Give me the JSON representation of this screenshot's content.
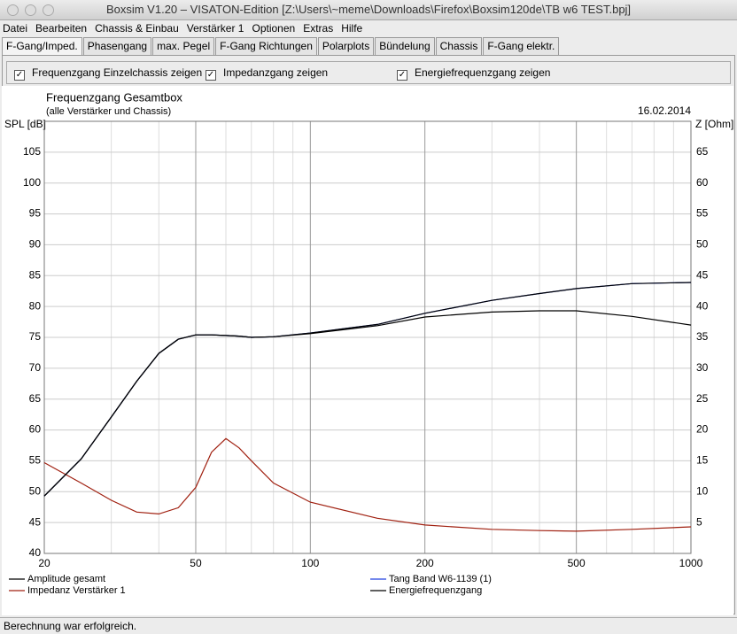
{
  "window": {
    "title": "Boxsim V1.20 – VISATON-Edition [Z:\\Users\\~meme\\Downloads\\Firefox\\Boxsim120de\\TB w6 TEST.bpj]"
  },
  "menu": [
    "Datei",
    "Bearbeiten",
    "Chassis & Einbau",
    "Verstärker 1",
    "Optionen",
    "Extras",
    "Hilfe"
  ],
  "tabs": [
    "F-Gang/Imped.",
    "Phasengang",
    "max. Pegel",
    "F-Gang Richtungen",
    "Polarplots",
    "Bündelung",
    "Chassis",
    "F-Gang elektr."
  ],
  "checkboxes": [
    "Frequenzgang Einzelchassis zeigen",
    "Impedanzgang zeigen",
    "Energiefrequenzgang zeigen"
  ],
  "chart_data": {
    "type": "line",
    "title": "Frequenzgang Gesamtbox",
    "subtitle": "(alle Verstärker und Chassis)",
    "date": "16.02.2014",
    "y_label": "SPL [dB]",
    "y2_label": "Z [Ohm]",
    "log_x": true,
    "grid": true,
    "x": [
      20,
      25,
      30,
      35,
      40,
      45,
      50,
      55,
      60,
      65,
      70,
      80,
      100,
      150,
      200,
      300,
      400,
      500,
      700,
      1000
    ],
    "xlim": [
      20,
      1000
    ],
    "xticks": [
      20,
      50,
      100,
      200,
      500,
      1000
    ],
    "x_minor_grid": [
      30,
      40,
      60,
      70,
      80,
      90,
      300,
      400,
      600,
      700,
      800,
      900
    ],
    "ylim": [
      40,
      110
    ],
    "yticks": [
      40,
      45,
      50,
      55,
      60,
      65,
      70,
      75,
      80,
      85,
      90,
      95,
      100,
      105
    ],
    "y2lim": [
      0,
      70
    ],
    "y2ticks": [
      5,
      10,
      15,
      20,
      25,
      30,
      35,
      40,
      45,
      50,
      55,
      60,
      65
    ],
    "series": [
      {
        "name": "Amplitude gesamt",
        "color": "#000000",
        "values": [
          49.3,
          55.3,
          62.1,
          67.9,
          72.4,
          74.7,
          75.4,
          75.4,
          75.3,
          75.2,
          75.0,
          75.1,
          75.7,
          77.1,
          78.9,
          81.0,
          82.1,
          82.9,
          83.7,
          83.9
        ]
      },
      {
        "name": "Tang Band W6-1139 (1)",
        "color": "#2040e0",
        "values": [
          49.3,
          55.3,
          62.1,
          67.9,
          72.4,
          74.7,
          75.4,
          75.4,
          75.3,
          75.2,
          75.0,
          75.1,
          75.7,
          77.1,
          78.9,
          81.0,
          82.1,
          82.9,
          83.7,
          83.9
        ]
      },
      {
        "name": "Impedanz Verstärker 1",
        "color": "#a02010",
        "axis": "y2",
        "values": [
          14.7,
          11.4,
          8.6,
          6.7,
          6.4,
          7.4,
          10.7,
          16.4,
          18.6,
          17.1,
          15.0,
          11.4,
          8.3,
          5.7,
          4.6,
          3.9,
          3.7,
          3.6,
          3.9,
          4.3
        ]
      },
      {
        "name": "Energiefrequenzgang",
        "color": "#000000",
        "values": [
          49.3,
          55.3,
          62.1,
          67.9,
          72.4,
          74.7,
          75.4,
          75.4,
          75.3,
          75.2,
          75.0,
          75.1,
          75.6,
          76.9,
          78.3,
          79.1,
          79.3,
          79.3,
          78.4,
          77.0
        ]
      }
    ]
  },
  "status": "Berechnung war erfolgreich."
}
